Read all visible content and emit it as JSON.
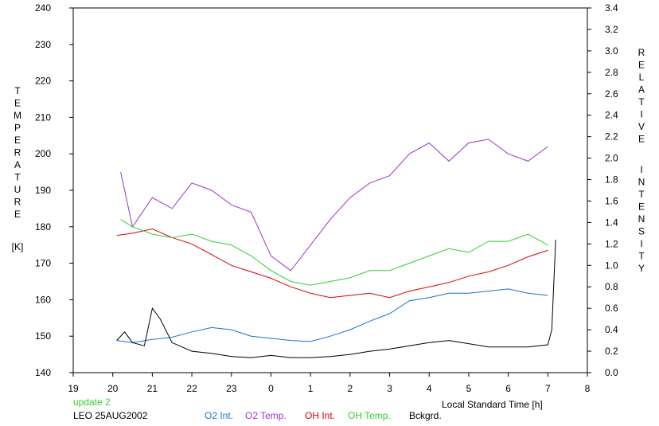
{
  "chart_data": {
    "type": "line",
    "xlabel": "Local Standard Time [h]",
    "x_ticks": [
      "19",
      "20",
      "21",
      "22",
      "23",
      "0",
      "1",
      "2",
      "3",
      "4",
      "5",
      "6",
      "7",
      "8"
    ],
    "xlim": [
      19,
      32
    ],
    "left_axis": {
      "label_letters": [
        "T",
        "E",
        "M",
        "P",
        "E",
        "R",
        "A",
        "T",
        "U",
        "R",
        "E"
      ],
      "unit": "[K]",
      "ylim": [
        140,
        240
      ],
      "ticks": [
        "140",
        "150",
        "160",
        "170",
        "180",
        "190",
        "200",
        "210",
        "220",
        "230",
        "240"
      ]
    },
    "right_axis": {
      "label_word1": [
        "R",
        "E",
        "L",
        "A",
        "T",
        "I",
        "V",
        "E"
      ],
      "label_word2": [
        "I",
        "N",
        "T",
        "E",
        "N",
        "S",
        "I",
        "T",
        "Y"
      ],
      "ylim": [
        0,
        3.4
      ],
      "ticks": [
        "0.0",
        "0.2",
        "0.4",
        "0.6",
        "0.8",
        "1.0",
        "1.2",
        "1.4",
        "1.6",
        "1.8",
        "2.0",
        "2.2",
        "2.4",
        "2.6",
        "2.8",
        "3.0",
        "3.2",
        "3.4"
      ]
    },
    "annotations": {
      "update": "update 2",
      "site_date": "LEO 25AUG2002"
    },
    "series": [
      {
        "name": "O2 Int.",
        "color": "#1f6fd0",
        "axis": "right",
        "x": [
          20.1,
          20.5,
          21.0,
          21.5,
          22.0,
          22.5,
          23.0,
          23.5,
          24.0,
          24.5,
          25.0,
          25.5,
          26.0,
          26.5,
          27.0,
          27.5,
          28.0,
          28.5,
          29.0,
          29.5,
          30.0,
          30.5,
          31.0
        ],
        "y": [
          0.3,
          0.28,
          0.31,
          0.33,
          0.38,
          0.42,
          0.4,
          0.34,
          0.32,
          0.3,
          0.29,
          0.34,
          0.4,
          0.48,
          0.55,
          0.67,
          0.7,
          0.74,
          0.74,
          0.76,
          0.78,
          0.74,
          0.72
        ]
      },
      {
        "name": "O2 Temp.",
        "color": "#9933cc",
        "axis": "left",
        "x": [
          20.2,
          20.5,
          21.0,
          21.5,
          22.0,
          22.5,
          23.0,
          23.5,
          24.0,
          24.5,
          25.0,
          25.5,
          26.0,
          26.5,
          27.0,
          27.5,
          28.0,
          28.5,
          29.0,
          29.5,
          30.0,
          30.5,
          31.0
        ],
        "y": [
          195,
          180,
          188,
          185,
          192,
          190,
          186,
          184,
          172,
          168,
          175,
          182,
          188,
          192,
          194,
          200,
          203,
          198,
          203,
          204,
          200,
          198,
          202
        ]
      },
      {
        "name": "OH Int.",
        "color": "#dd0000",
        "axis": "right",
        "x": [
          20.1,
          20.5,
          21.0,
          21.5,
          22.0,
          22.5,
          23.0,
          23.5,
          24.0,
          24.5,
          25.0,
          25.5,
          26.0,
          26.5,
          27.0,
          27.5,
          28.0,
          28.5,
          29.0,
          29.5,
          30.0,
          30.5,
          31.0
        ],
        "y": [
          1.28,
          1.3,
          1.34,
          1.26,
          1.2,
          1.1,
          1.0,
          0.94,
          0.88,
          0.8,
          0.74,
          0.7,
          0.72,
          0.74,
          0.7,
          0.76,
          0.8,
          0.84,
          0.9,
          0.94,
          1.0,
          1.08,
          1.14
        ]
      },
      {
        "name": "OH Temp.",
        "color": "#33cc33",
        "axis": "left",
        "x": [
          20.2,
          20.5,
          21.0,
          21.5,
          22.0,
          22.5,
          23.0,
          23.5,
          24.0,
          24.5,
          25.0,
          25.5,
          26.0,
          26.5,
          27.0,
          27.5,
          28.0,
          28.5,
          29.0,
          29.5,
          30.0,
          30.5,
          31.0
        ],
        "y": [
          182,
          180,
          178,
          177,
          178,
          176,
          175,
          172,
          168,
          165,
          164,
          165,
          166,
          168,
          168,
          170,
          172,
          174,
          173,
          176,
          176,
          178,
          175
        ]
      },
      {
        "name": "Bckgrd.",
        "color": "#000000",
        "axis": "right",
        "x": [
          20.1,
          20.3,
          20.5,
          20.8,
          21.0,
          21.2,
          21.5,
          22.0,
          22.5,
          23.0,
          23.5,
          24.0,
          24.5,
          25.0,
          25.5,
          26.0,
          26.5,
          27.0,
          27.5,
          28.0,
          28.5,
          29.0,
          29.5,
          30.0,
          30.5,
          31.0,
          31.1,
          31.2
        ],
        "y": [
          0.3,
          0.38,
          0.28,
          0.25,
          0.6,
          0.5,
          0.28,
          0.2,
          0.18,
          0.15,
          0.14,
          0.16,
          0.14,
          0.14,
          0.15,
          0.17,
          0.2,
          0.22,
          0.25,
          0.28,
          0.3,
          0.27,
          0.24,
          0.24,
          0.24,
          0.26,
          0.4,
          1.24
        ]
      }
    ]
  }
}
